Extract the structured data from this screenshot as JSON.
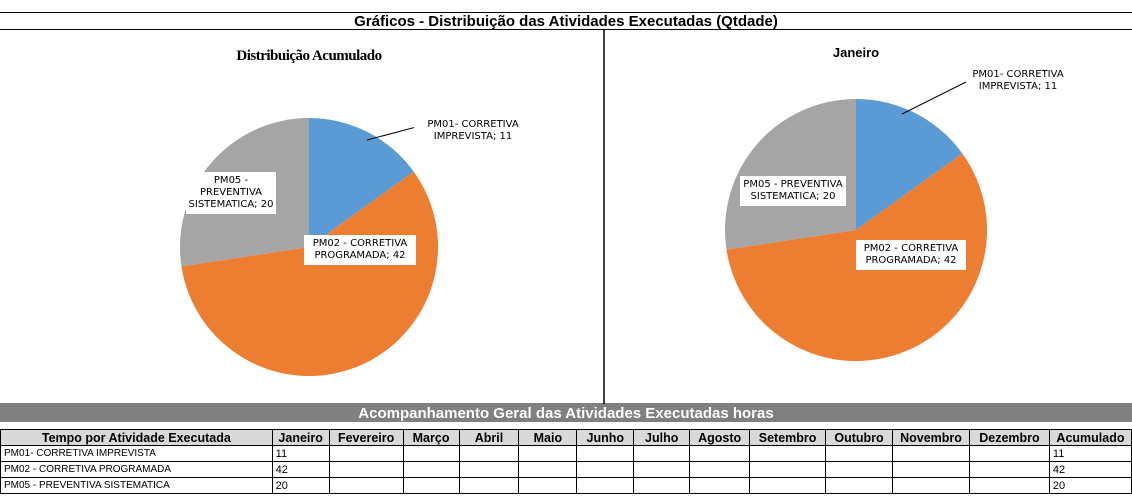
{
  "title": "Gráficos - Distribuição das Atividades Executadas (Qtdade)",
  "chart_data": [
    {
      "type": "pie",
      "title": "Distribuição Acumulado",
      "values": [
        11,
        42,
        20
      ],
      "value_labels": [
        "PM01- CORRETIVA IMPREVISTA; 11",
        "PM02 - CORRETIVA PROGRAMADA; 42",
        "PM05 - PREVENTIVA SISTEMATICA; 20"
      ],
      "colors": [
        "#5b9bd5",
        "#ed7d31",
        "#a5a5a5"
      ]
    },
    {
      "type": "pie",
      "title": "Janeiro",
      "values": [
        11,
        42,
        20
      ],
      "value_labels": [
        "PM01- CORRETIVA IMPREVISTA; 11",
        "PM02 - CORRETIVA PROGRAMADA; 42",
        "PM05 - PREVENTIVA SISTEMATICA; 20"
      ],
      "colors": [
        "#5b9bd5",
        "#ed7d31",
        "#a5a5a5"
      ]
    }
  ],
  "table": {
    "title": "Acompanhamento Geral das Atividades Executadas horas",
    "columns": [
      "Tempo por Atividade Executada",
      "Janeiro",
      "Fevereiro",
      "Março",
      "Abril",
      "Maio",
      "Junho",
      "Julho",
      "Agosto",
      "Setembro",
      "Outubro",
      "Novembro",
      "Dezembro",
      "Acumulado"
    ],
    "rows": [
      [
        "PM01- CORRETIVA IMPREVISTA",
        11,
        null,
        null,
        null,
        null,
        null,
        null,
        null,
        null,
        null,
        null,
        null,
        11
      ],
      [
        "PM02 - CORRETIVA PROGRAMADA",
        42,
        null,
        null,
        null,
        null,
        null,
        null,
        null,
        null,
        null,
        null,
        null,
        42
      ],
      [
        "PM05 - PREVENTIVA SISTEMATICA",
        20,
        null,
        null,
        null,
        null,
        null,
        null,
        null,
        null,
        null,
        null,
        null,
        20
      ]
    ]
  }
}
